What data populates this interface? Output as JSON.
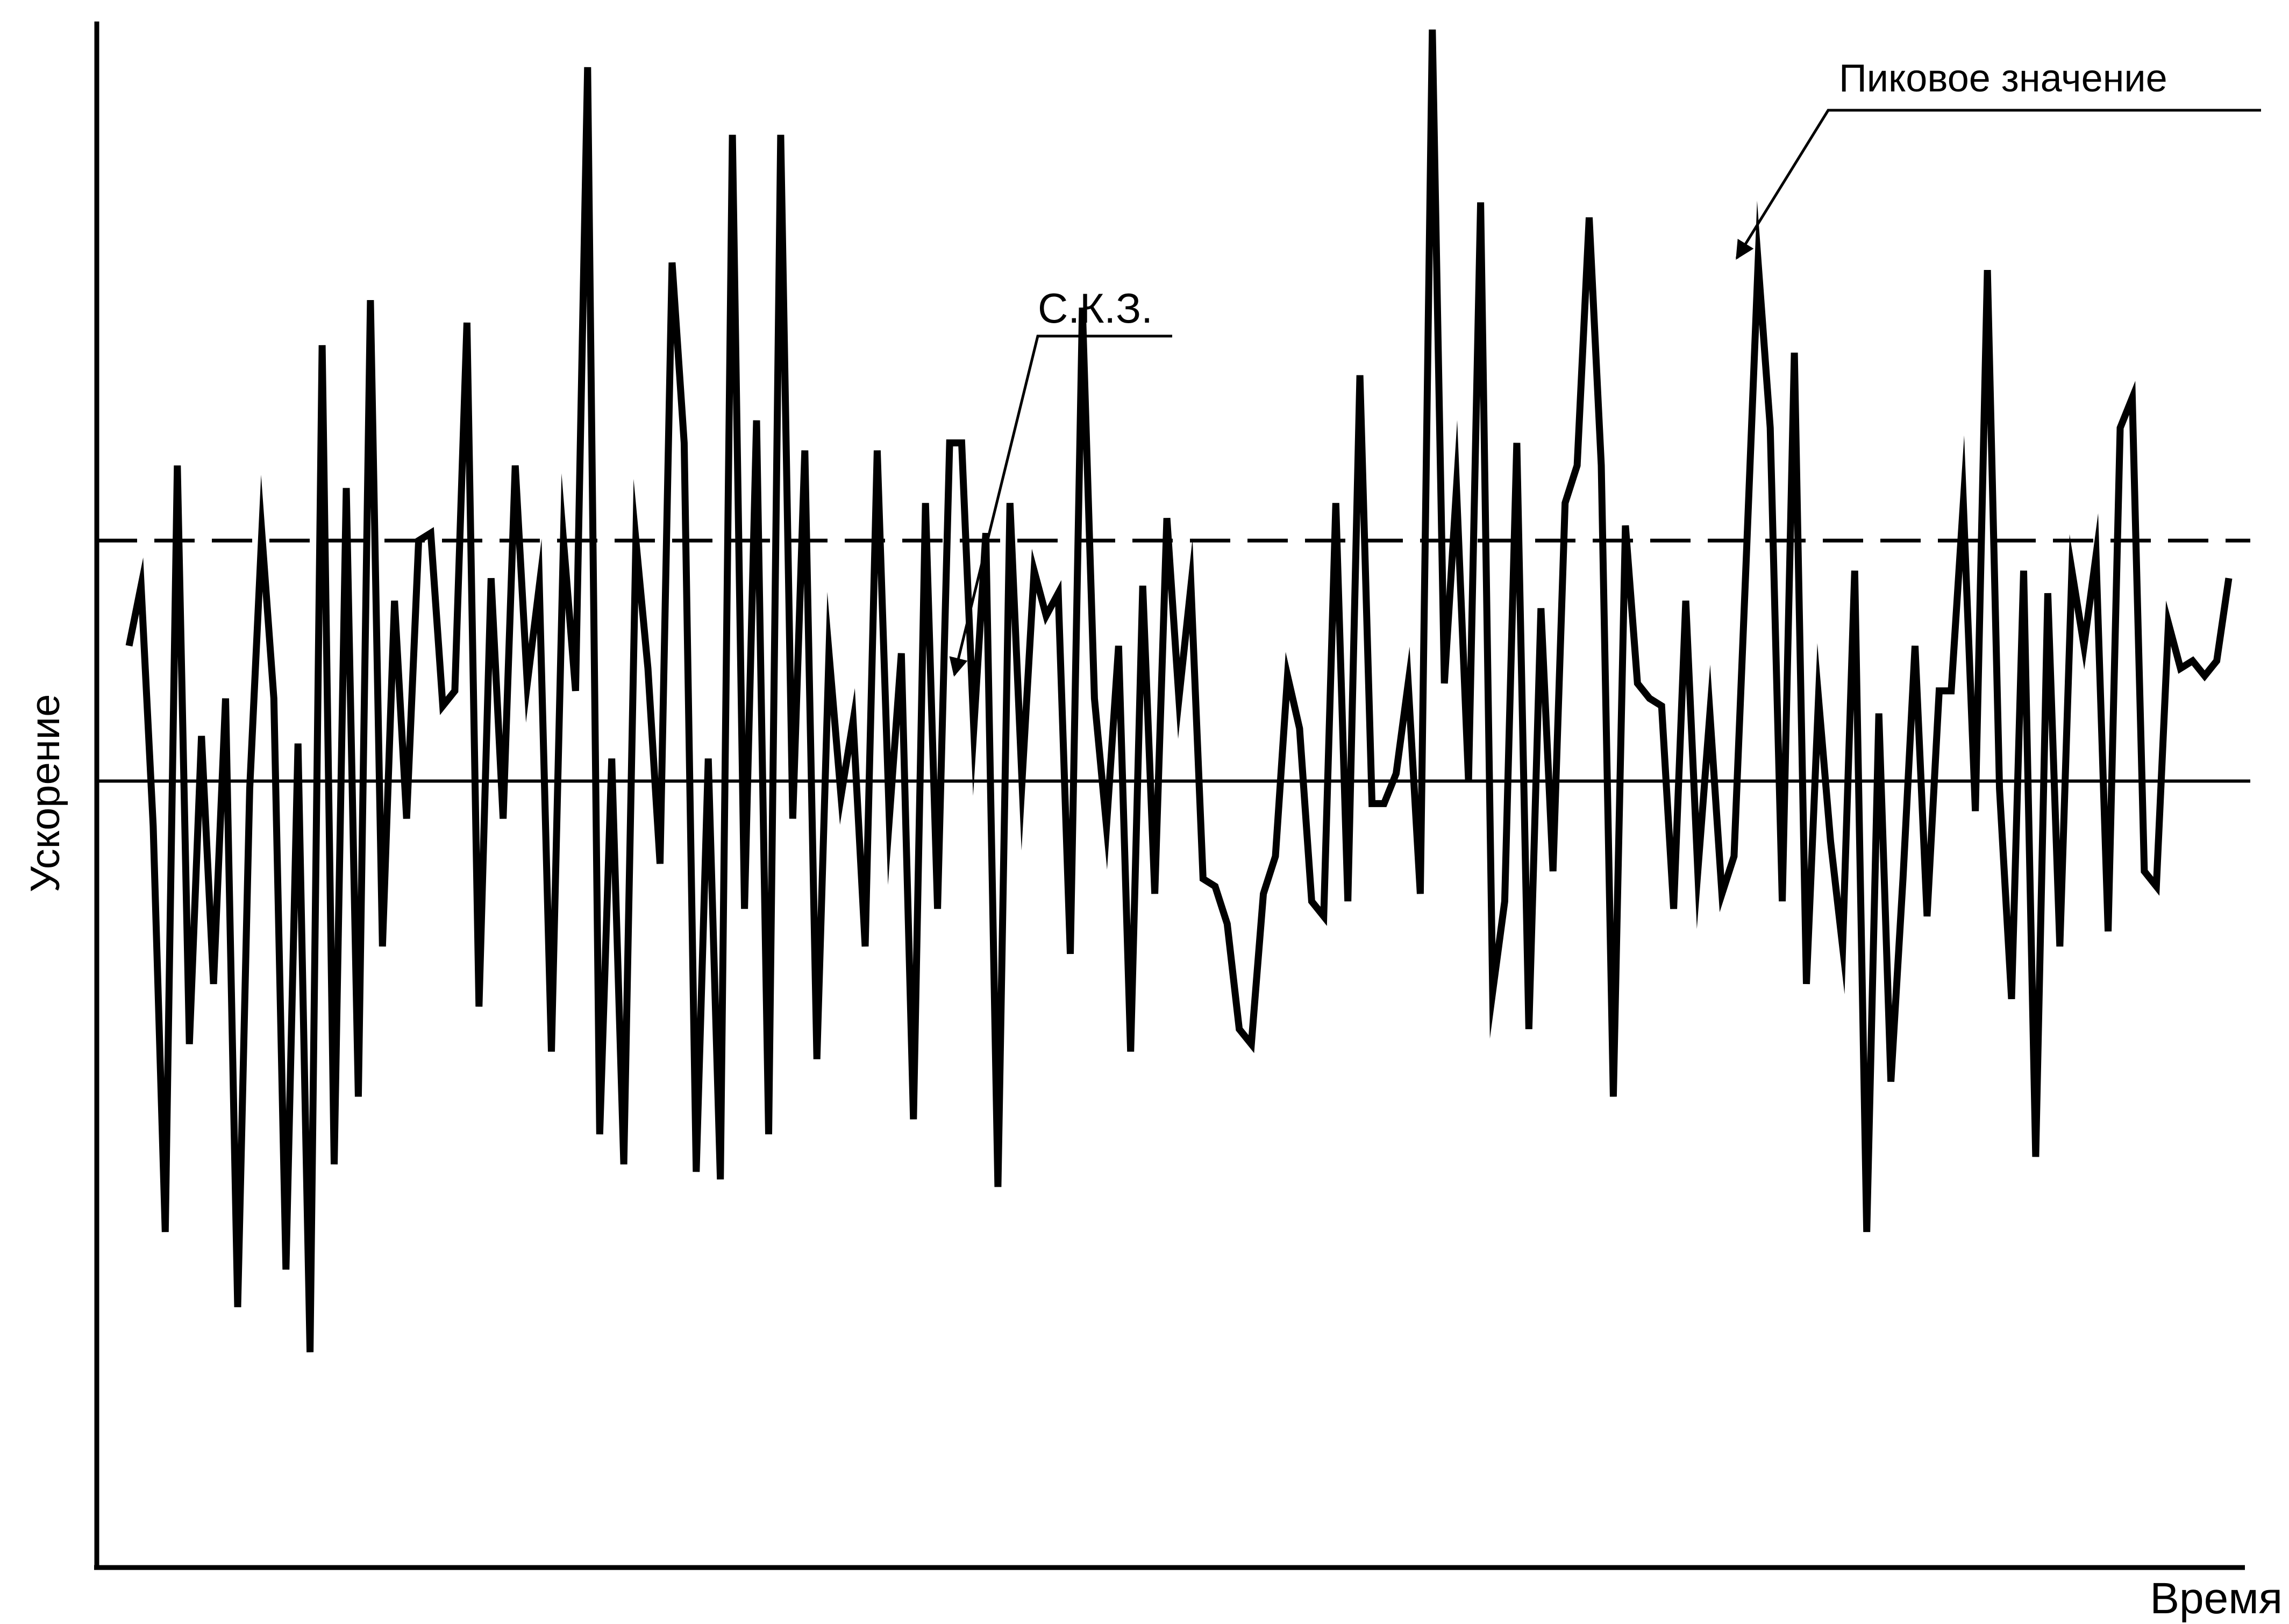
{
  "chart_data": {
    "type": "line",
    "title": "",
    "xlabel": "Время",
    "ylabel": "Ускорение",
    "xlim": [
      0,
      1
    ],
    "ylim": [
      -1.0,
      1.0
    ],
    "grid": false,
    "legend": "none",
    "series": [
      {
        "values": [
          0.18,
          0.26,
          -0.06,
          -0.6,
          0.42,
          -0.35,
          0.06,
          -0.27,
          0.11,
          -0.7,
          -0.01,
          0.33,
          0.11,
          -0.65,
          0.05,
          -0.76,
          0.58,
          -0.51,
          0.39,
          -0.42,
          0.64,
          -0.22,
          0.24,
          -0.05,
          0.32,
          0.33,
          0.1,
          0.12,
          0.61,
          -0.3,
          0.27,
          -0.05,
          0.42,
          0.13,
          0.26,
          -0.36,
          0.32,
          0.12,
          0.95,
          -0.47,
          0.03,
          -0.51,
          0.32,
          0.15,
          -0.11,
          0.69,
          0.45,
          -0.52,
          0.03,
          -0.53,
          0.86,
          -0.17,
          0.48,
          -0.47,
          0.86,
          -0.05,
          0.44,
          -0.37,
          0.17,
          -0.02,
          0.08,
          -0.22,
          0.44,
          -0.05,
          0.17,
          -0.45,
          0.37,
          -0.17,
          0.45,
          0.45,
          0.07,
          0.33,
          -0.54,
          0.37,
          0.0,
          0.28,
          0.22,
          0.25,
          -0.23,
          0.63,
          0.11,
          -0.06,
          0.18,
          -0.36,
          0.26,
          -0.15,
          0.35,
          0.11,
          0.26,
          -0.13,
          -0.14,
          -0.19,
          -0.33,
          -0.35,
          -0.15,
          -0.1,
          0.14,
          0.07,
          -0.16,
          -0.18,
          0.37,
          -0.16,
          0.54,
          -0.03,
          -0.03,
          0.01,
          0.13,
          -0.15,
          1.0,
          0.13,
          0.39,
          0.0,
          0.77,
          -0.28,
          -0.16,
          0.45,
          -0.33,
          0.23,
          -0.12,
          0.37,
          0.42,
          0.75,
          0.42,
          -0.42,
          0.34,
          0.13,
          0.11,
          0.1,
          -0.17,
          0.24,
          -0.12,
          0.09,
          -0.15,
          -0.1,
          0.29,
          0.69,
          0.47,
          -0.16,
          0.57,
          -0.27,
          0.11,
          -0.08,
          -0.22,
          0.28,
          -0.6,
          0.09,
          -0.4,
          -0.13,
          0.18,
          -0.18,
          0.12,
          0.12,
          0.37,
          -0.04,
          0.68,
          -0.01,
          -0.29,
          0.28,
          -0.5,
          0.25,
          -0.22,
          0.28,
          0.18,
          0.3,
          -0.2,
          0.47,
          0.51,
          -0.12,
          -0.14,
          0.21,
          0.15,
          0.16,
          0.14,
          0.16,
          0.27
        ]
      }
    ],
    "reference_lines": [
      {
        "label": "С.К.З.",
        "value": 0.32,
        "style": "dashed"
      },
      {
        "label": "",
        "value": 0.0,
        "style": "solid"
      }
    ],
    "annotations": [
      {
        "text": "С.К.З.",
        "points_to": "rms-line"
      },
      {
        "text": "Пиковое значение",
        "points_to": "series-peak"
      }
    ]
  },
  "colors": {
    "ink": "#000000",
    "background": "#ffffff"
  }
}
